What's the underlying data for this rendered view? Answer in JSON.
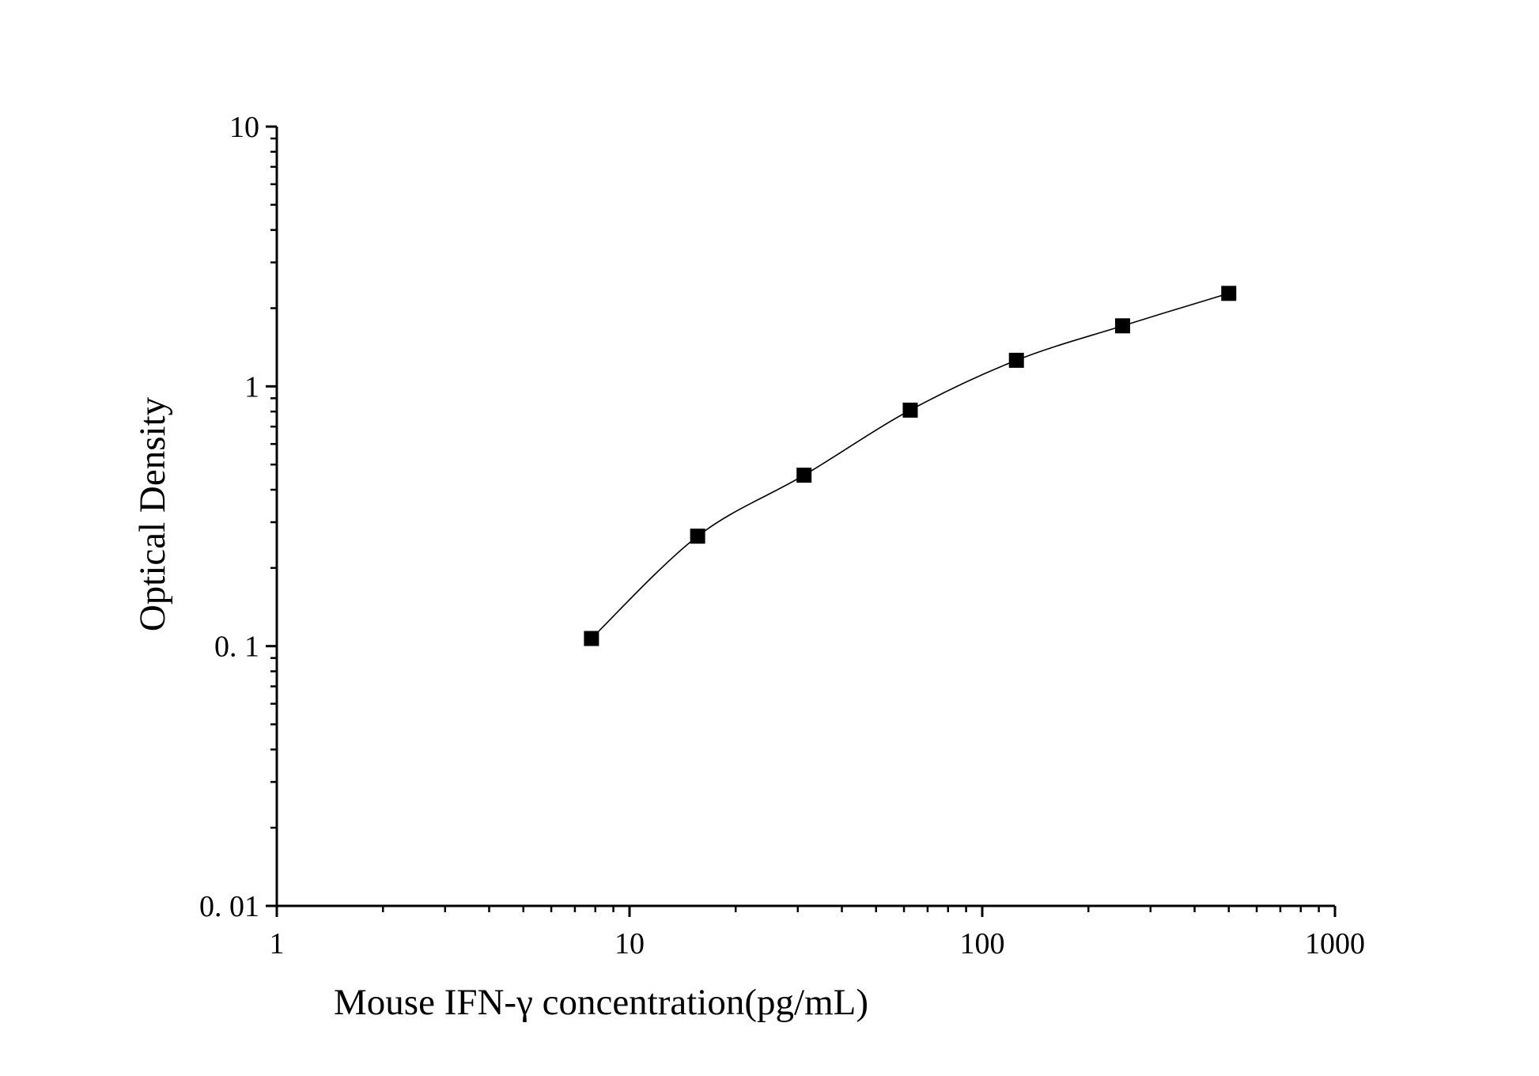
{
  "chart_data": {
    "type": "scatter",
    "title": "",
    "xlabel": "Mouse IFN-γ concentration(pg/mL)",
    "ylabel": "Optical Density",
    "x_scale": "log",
    "y_scale": "log",
    "xlim": [
      1,
      1000
    ],
    "ylim": [
      0.01,
      10
    ],
    "x_tick_labels": [
      "1",
      "10",
      "100",
      "1000"
    ],
    "y_tick_labels": [
      "0. 01",
      "0. 1",
      "1",
      "10"
    ],
    "grid": false,
    "legend": "none",
    "marker_color": "#000000",
    "series": [
      {
        "x": [
          7.8,
          15.6,
          31.25,
          62.5,
          125,
          250,
          500
        ],
        "y": [
          0.107,
          0.265,
          0.455,
          0.81,
          1.26,
          1.71,
          2.28
        ],
        "marker": "square",
        "fit_curve": true
      }
    ]
  }
}
